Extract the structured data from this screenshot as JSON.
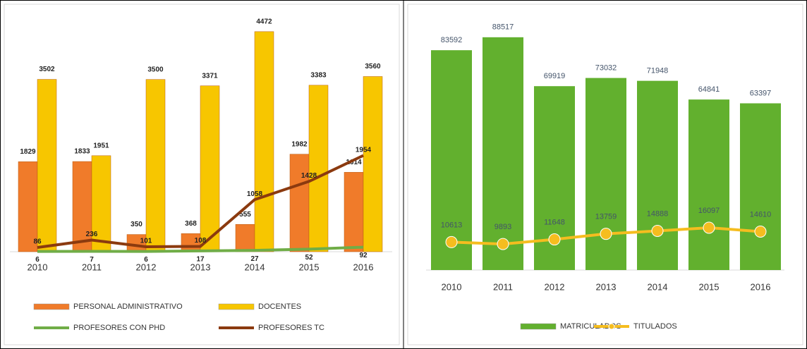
{
  "chart_data": [
    {
      "type": "combo",
      "categories": [
        "2010",
        "2011",
        "2012",
        "2013",
        "2014",
        "2015",
        "2016"
      ],
      "ylim": [
        0,
        5000
      ],
      "series": [
        {
          "name": "PERSONAL  ADMINISTRATIVO",
          "kind": "bar",
          "color": "#f07b2a",
          "values": [
            1829,
            1833,
            350,
            368,
            555,
            1982,
            1614
          ]
        },
        {
          "name": "DOCENTES",
          "kind": "bar",
          "color": "#f7c600",
          "values": [
            3502,
            1951,
            3500,
            3371,
            4472,
            3383,
            3560
          ]
        },
        {
          "name": "PROFESORES CON PHD",
          "kind": "line",
          "color": "#70ad47",
          "values": [
            6,
            7,
            6,
            17,
            27,
            52,
            92
          ]
        },
        {
          "name": "PROFESORES TC",
          "kind": "line",
          "color": "#8b3a0f",
          "values": [
            86,
            236,
            101,
            108,
            1058,
            1428,
            1954
          ]
        }
      ]
    },
    {
      "type": "combo",
      "categories": [
        "2010",
        "2011",
        "2012",
        "2013",
        "2014",
        "2015",
        "2016"
      ],
      "ylim": [
        0,
        100000
      ],
      "series": [
        {
          "name": "MATRICULADOS",
          "kind": "bar",
          "color": "#62b02e",
          "values": [
            83592,
            88517,
            69919,
            73032,
            71948,
            64841,
            63397
          ]
        },
        {
          "name": "TITULADOS",
          "kind": "line",
          "color": "#f5bd1f",
          "values": [
            10613,
            9893,
            11648,
            13759,
            14888,
            16097,
            14610
          ]
        }
      ]
    }
  ]
}
